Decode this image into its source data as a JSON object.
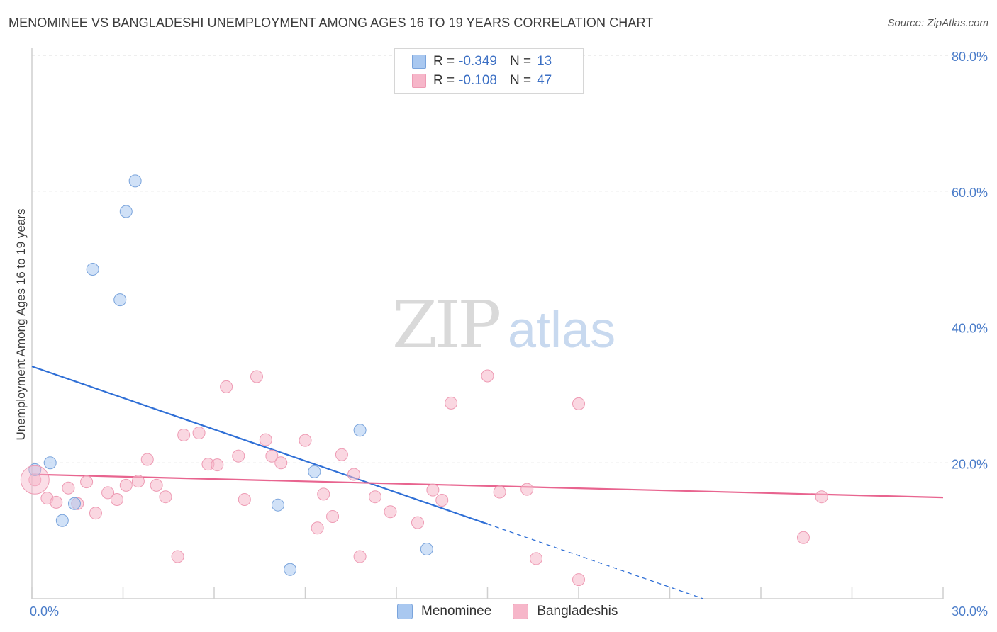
{
  "header": {
    "title": "MENOMINEE VS BANGLADESHI UNEMPLOYMENT AMONG AGES 16 TO 19 YEARS CORRELATION CHART",
    "source": "Source: ZipAtlas.com"
  },
  "watermark": {
    "zip": "ZIP",
    "atlas": "atlas"
  },
  "legend": {
    "rows": [
      {
        "r_label": "R = ",
        "r_value": "-0.349",
        "n_label": "N = ",
        "n_value": "13",
        "color": "#a9c8f0"
      },
      {
        "r_label": "R = ",
        "r_value": "-0.108",
        "n_label": "N = ",
        "n_value": "47",
        "color": "#f6b6c9"
      }
    ]
  },
  "bottom_legend": {
    "items": [
      "Menominee",
      "Bangladeshis"
    ]
  },
  "chart_data": {
    "type": "scatter",
    "ylabel": "Unemployment Among Ages 16 to 19 years",
    "xlabel": "",
    "xlim": [
      0,
      30
    ],
    "ylim": [
      0,
      80
    ],
    "y_ticks": [
      20,
      40,
      60,
      80
    ],
    "y_tick_labels": [
      "20.0%",
      "40.0%",
      "60.0%",
      "80.0%"
    ],
    "x_tick_labels": [
      "0.0%",
      "30.0%"
    ],
    "grid": true,
    "colors": {
      "Menominee": "#a9c8f0",
      "Bangladeshis": "#f6b6c9",
      "menominee_line": "#2f6fd6",
      "bangladeshi_line": "#e8648f",
      "axis_text": "#4a7cc9"
    },
    "series": [
      {
        "name": "Menominee",
        "points": [
          [
            0.1,
            19.0
          ],
          [
            0.6,
            20.0
          ],
          [
            1.0,
            11.5
          ],
          [
            1.4,
            14.0
          ],
          [
            2.0,
            48.5
          ],
          [
            2.9,
            44.0
          ],
          [
            3.1,
            57.0
          ],
          [
            3.4,
            61.5
          ],
          [
            8.1,
            13.8
          ],
          [
            8.5,
            4.3
          ],
          [
            9.3,
            18.7
          ],
          [
            10.8,
            24.8
          ],
          [
            13.0,
            7.3
          ]
        ],
        "trend": {
          "x0": 0,
          "y0": 34.2,
          "x1": 15.0,
          "y1": 11.0,
          "dash_to_x": 22.1,
          "dash_to_y": 0
        }
      },
      {
        "name": "Bangladeshis",
        "points": [
          [
            0.1,
            17.5
          ],
          [
            0.5,
            14.8
          ],
          [
            0.8,
            14.2
          ],
          [
            1.2,
            16.3
          ],
          [
            1.5,
            14.0
          ],
          [
            1.8,
            17.2
          ],
          [
            2.1,
            12.6
          ],
          [
            2.5,
            15.6
          ],
          [
            2.8,
            14.6
          ],
          [
            3.1,
            16.7
          ],
          [
            3.5,
            17.3
          ],
          [
            3.8,
            20.5
          ],
          [
            4.1,
            16.7
          ],
          [
            4.4,
            15.0
          ],
          [
            4.8,
            6.2
          ],
          [
            5.0,
            24.1
          ],
          [
            5.5,
            24.4
          ],
          [
            5.8,
            19.8
          ],
          [
            6.1,
            19.7
          ],
          [
            6.4,
            31.2
          ],
          [
            6.8,
            21.0
          ],
          [
            7.0,
            14.6
          ],
          [
            7.4,
            32.7
          ],
          [
            7.7,
            23.4
          ],
          [
            7.9,
            21.0
          ],
          [
            8.2,
            20.0
          ],
          [
            9.0,
            23.3
          ],
          [
            9.4,
            10.4
          ],
          [
            9.6,
            15.4
          ],
          [
            9.9,
            12.1
          ],
          [
            10.2,
            21.2
          ],
          [
            10.6,
            18.3
          ],
          [
            10.8,
            6.2
          ],
          [
            11.3,
            15.0
          ],
          [
            11.8,
            12.8
          ],
          [
            12.7,
            11.2
          ],
          [
            13.2,
            16.0
          ],
          [
            13.5,
            14.5
          ],
          [
            13.8,
            28.8
          ],
          [
            15.0,
            32.8
          ],
          [
            15.4,
            15.7
          ],
          [
            16.3,
            16.1
          ],
          [
            16.6,
            5.9
          ],
          [
            18.0,
            28.7
          ],
          [
            18.0,
            2.8
          ],
          [
            25.4,
            9.0
          ],
          [
            26.0,
            15.0
          ]
        ],
        "trend": {
          "x0": 0,
          "y0": 18.3,
          "x1": 30,
          "y1": 14.9
        }
      }
    ]
  }
}
